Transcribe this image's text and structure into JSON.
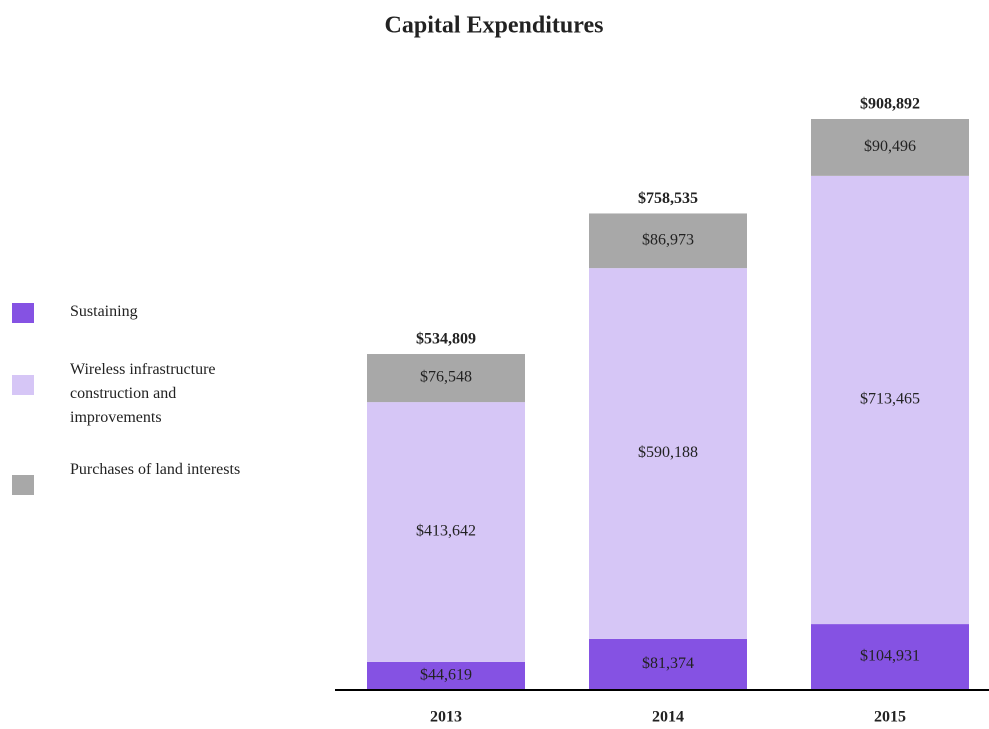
{
  "chart_data": {
    "type": "stacked_bar",
    "title": "Capital Expenditures",
    "categories": [
      "2013",
      "2014",
      "2015"
    ],
    "series": [
      {
        "name": "Sustaining",
        "color": "#8552e3",
        "values": [
          44619,
          81374,
          104931
        ],
        "value_labels": [
          "$44,619",
          "$81,374",
          "$104,931"
        ]
      },
      {
        "name": "Wireless infrastructure construction and improvements",
        "color": "#d6c6f6",
        "values": [
          413642,
          590188,
          713465
        ],
        "value_labels": [
          "$413,642",
          "$590,188",
          "$713,465"
        ]
      },
      {
        "name": "Purchases of land interests",
        "color": "#a8a8a8",
        "values": [
          76548,
          86973,
          90496
        ],
        "value_labels": [
          "$76,548",
          "$86,973",
          "$90,496"
        ]
      }
    ],
    "totals": [
      534809,
      758535,
      908892
    ],
    "total_labels": [
      "$534,809",
      "$758,535",
      "$908,892"
    ]
  }
}
